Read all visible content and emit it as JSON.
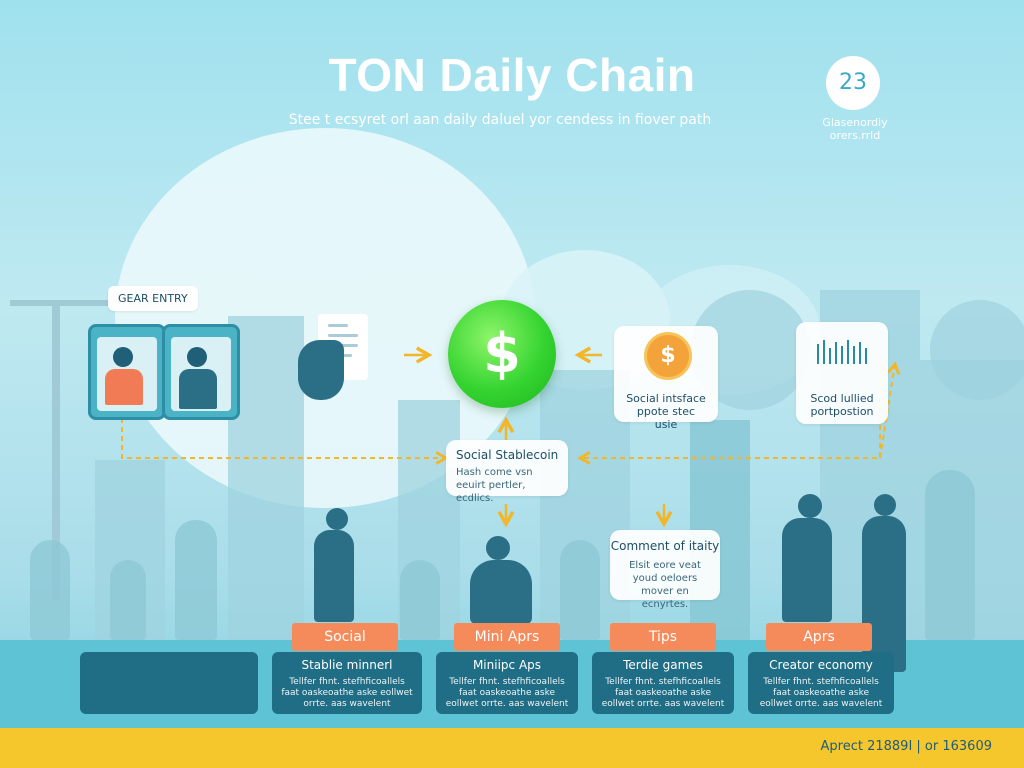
{
  "header": {
    "title": "TON Daily Chain",
    "subtitle": "Stee t ecsyret orl aan daily daluel yor cendess in fiover path",
    "corner_number": "23",
    "corner_caption": "Glasenordiy orers.rrld"
  },
  "entry_label": "GEAR ENTRY",
  "hub_symbol": "$",
  "coin_symbol": "$",
  "nodes": {
    "social_interface": {
      "text": "Social intsface ppote stec usie"
    },
    "social_fulfilled": {
      "text": "Scod lullied portpostion"
    },
    "stablecoin": {
      "title": "Social Stablecoin",
      "body": "Hash come vsn eeuirt pertler, ecdlics."
    },
    "comment": {
      "title": "Comment of itaity",
      "body": "Elsit eore veat youd oeloers mover en ecnyrtes."
    }
  },
  "categories": [
    "Social",
    "Mini Aprs",
    "Tips",
    "Aprs"
  ],
  "bottom_cards": [
    {
      "title": "",
      "body": ""
    },
    {
      "title": "Stablie minnerl",
      "body": "Tellfer fhnt. stefhficoallels faat oaskeoathe aske eollwet orrte. aas wavelent"
    },
    {
      "title": "Miniipc Aps",
      "body": "Tellfer fhnt. stefhficoallels faat oaskeoathe aske eollwet orrte. aas wavelent"
    },
    {
      "title": "Terdie games",
      "body": "Tellfer fhnt. stefhficoallels faat oaskeoathe aske eollwet orrte. aas wavelent"
    },
    {
      "title": "Creator economy",
      "body": "Tellfer fhnt. stefhficoallels faat oaskeoathe aske eollwet orrte. aas wavelent"
    }
  ],
  "footer": "Aprect 21889I | or 163609",
  "colors": {
    "sky": "#9fe1ee",
    "accent_green": "#35d431",
    "tab_orange": "#f58a5b",
    "card_teal": "#1f6e86",
    "arrow_yellow": "#f2b62a",
    "footer_yellow": "#f6c72d"
  }
}
